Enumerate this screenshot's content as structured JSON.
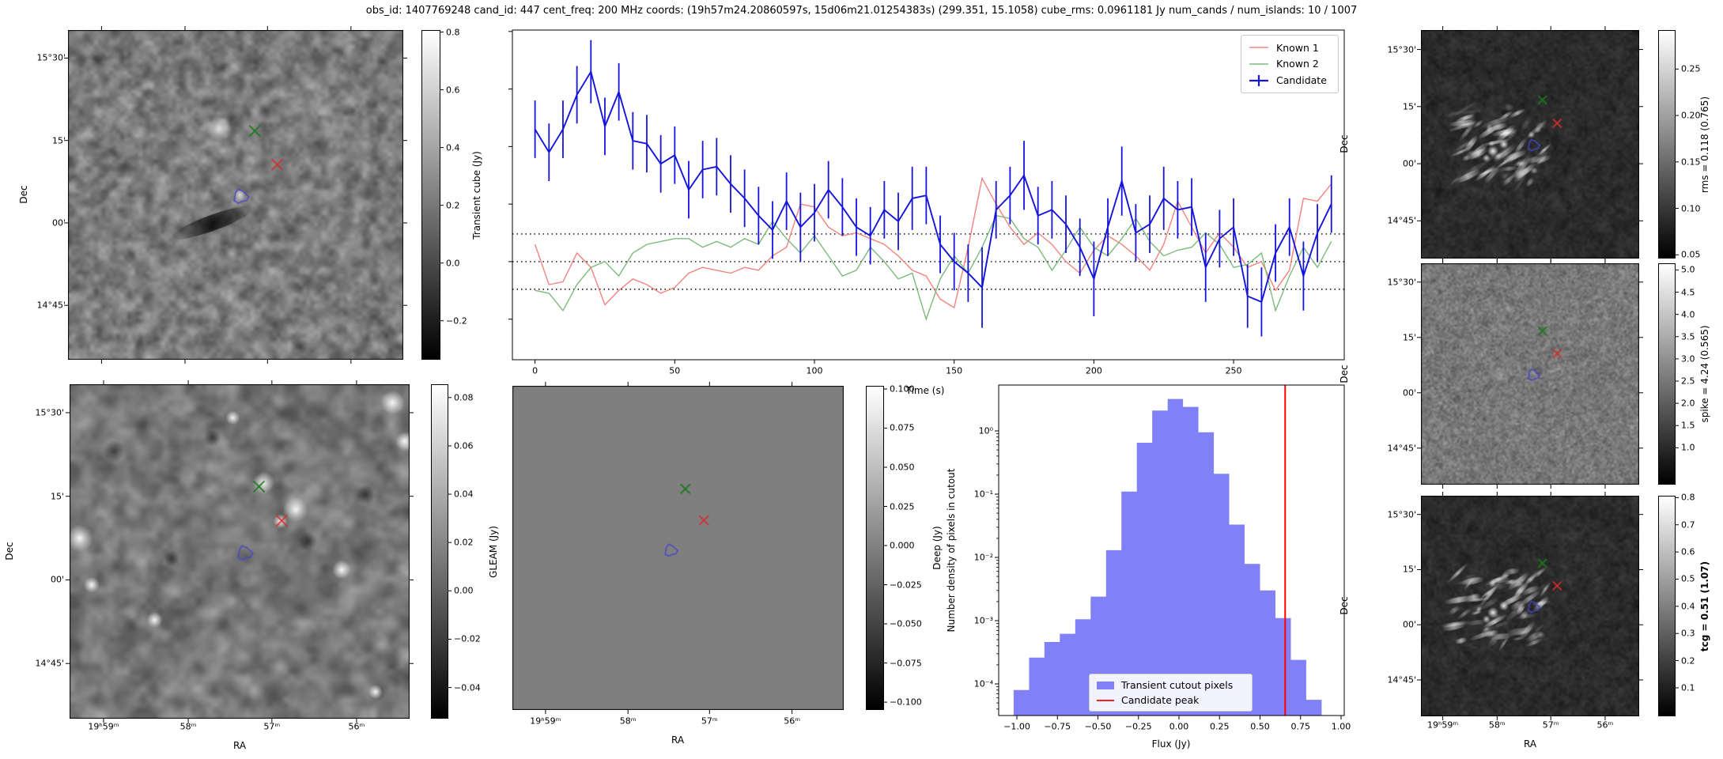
{
  "title": "obs_id: 1407769248 cand_id: 447 cent_freq: 200 MHz coords: (19h57m24.20860597s, 15d06m21.01254383s) (299.351, 15.1058) cube_rms: 0.0961181 Jy num_cands / num_islands: 10 / 1007",
  "colors": {
    "known1": "#f4837d",
    "known2": "#7cba7c",
    "candidate": "#1414dc",
    "hist_bar": "#8181f7",
    "hist_line": "#ff0000",
    "green_cross": "#1a7a1a",
    "red_cross": "#d62e2e",
    "blue_contour": "#4545cc",
    "deep_flat_gray": "#7f7f7f"
  },
  "sky_markers": {
    "green_cross": {
      "meaning": "Known 2 position",
      "fx": 0.557,
      "fy": 0.306
    },
    "red_cross": {
      "meaning": "Known 1 position",
      "fx": 0.624,
      "fy": 0.408
    },
    "blue_contour": {
      "meaning": "Candidate island contour",
      "fx": 0.515,
      "fy": 0.505
    }
  },
  "panels": {
    "transient_cube": {
      "dec_label": "Dec",
      "dec_ticks": [
        "15°30'",
        "15'",
        "00'",
        "14°45'"
      ],
      "colorbar": {
        "label": "Transient cube (Jy)",
        "ticks": [
          "0.8",
          "0.6",
          "0.4",
          "0.2",
          "0.0",
          "−0.2"
        ],
        "range": [
          -0.335,
          0.807
        ]
      }
    },
    "rms_map": {
      "dec_label": "Dec",
      "dec_ticks": [
        "15°30'",
        "15'",
        "00'",
        "14°45'"
      ],
      "colorbar": {
        "label": "rms = 0.118 (0.765)",
        "ticks": [
          "0.25",
          "0.20",
          "0.15",
          "0.10",
          "0.05"
        ],
        "range": [
          0.046,
          0.292
        ]
      }
    },
    "spike_map": {
      "dec_label": "Dec",
      "dec_ticks": [
        "15°30'",
        "15'",
        "00'",
        "14°45'"
      ],
      "colorbar": {
        "label": "spike = 4.24 (0.565)",
        "ticks": [
          "5.0",
          "4.5",
          "4.0",
          "3.5",
          "3.0",
          "2.5",
          "2.0",
          "1.5",
          "1.0"
        ],
        "range": [
          0.17,
          5.15
        ]
      }
    },
    "tcg_map": {
      "dec_label": "Dec",
      "ra_label": "RA",
      "dec_ticks": [
        "15°30'",
        "15'",
        "00'",
        "14°45'"
      ],
      "ra_ticks": [
        "19ʰ59ᵐ",
        "58ᵐ",
        "57ᵐ",
        "56ᵐ"
      ],
      "colorbar": {
        "label": "tcg = 0.51 (1.07)",
        "bold": true,
        "ticks": [
          "0.8",
          "0.7",
          "0.6",
          "0.5",
          "0.4",
          "0.3",
          "0.2",
          "0.1"
        ],
        "range": [
          -0.005,
          0.807
        ]
      }
    },
    "gleam": {
      "dec_label": "Dec",
      "ra_label": "RA",
      "dec_ticks": [
        "15°30'",
        "15'",
        "00'",
        "14°45'"
      ],
      "ra_ticks": [
        "19ʰ59ᵐ",
        "58ᵐ",
        "57ᵐ",
        "56ᵐ"
      ],
      "colorbar": {
        "label": "GLEAM (Jy)",
        "ticks": [
          "0.08",
          "0.06",
          "0.04",
          "0.02",
          "0.00",
          "−0.02",
          "−0.04"
        ],
        "range": [
          -0.0529,
          0.0855
        ]
      }
    },
    "deep": {
      "ra_label": "RA",
      "ra_ticks": [
        "19ʰ59ᵐ",
        "58ᵐ",
        "57ᵐ",
        "56ᵐ"
      ],
      "colorbar": {
        "label": "Deep (Jy)",
        "ticks": [
          "0.100",
          "0.075",
          "0.050",
          "0.025",
          "0.000",
          "−0.025",
          "−0.050",
          "−0.075",
          "−0.100"
        ],
        "range": [
          -0.105,
          0.102
        ]
      }
    }
  },
  "chart_data": [
    {
      "type": "line",
      "name": "lightcurve",
      "xlabel": "Time (s)",
      "xlim": [
        -8.1,
        289.6
      ],
      "ylim": [
        -0.341,
        0.805
      ],
      "xticks": [
        0,
        50,
        100,
        150,
        200,
        250
      ],
      "xtick_labels": [
        "0",
        "50",
        "100",
        "150",
        "200",
        "250"
      ],
      "yticks_unlabeled": [
        0.8,
        0.6,
        0.4,
        0.2,
        0.0,
        -0.2
      ],
      "dotted_hlines": [
        0.0961,
        0.0,
        -0.0961
      ],
      "legend_position": "upper right",
      "t_start": 0,
      "t_step": 5,
      "series": [
        {
          "name": "Known 1",
          "values": [
            0.06,
            -0.08,
            -0.07,
            0.03,
            -0.02,
            -0.15,
            -0.1,
            -0.06,
            -0.08,
            -0.11,
            -0.09,
            -0.04,
            -0.02,
            -0.03,
            -0.04,
            -0.02,
            -0.03,
            0.02,
            0.05,
            0.2,
            0.19,
            0.12,
            0.09,
            0.1,
            0.08,
            0.06,
            0.02,
            -0.03,
            -0.05,
            -0.13,
            -0.16,
            0.05,
            0.29,
            0.2,
            0.12,
            0.06,
            0.1,
            0.06,
            0.0,
            -0.04,
            0.04,
            0.09,
            0.06,
            0.02,
            -0.03,
            0.06,
            0.21,
            0.12,
            0.03,
            0.1,
            0.05,
            -0.02,
            0.0,
            -0.1,
            -0.03,
            0.22,
            0.21,
            0.27
          ]
        },
        {
          "name": "Known 2",
          "values": [
            -0.1,
            -0.11,
            -0.17,
            -0.08,
            -0.02,
            0.0,
            -0.05,
            0.03,
            0.06,
            0.07,
            0.08,
            0.08,
            0.05,
            0.07,
            0.05,
            0.08,
            0.06,
            0.14,
            0.08,
            0.03,
            0.09,
            0.02,
            -0.05,
            -0.03,
            0.05,
            0.0,
            -0.06,
            -0.04,
            -0.2,
            -0.06,
            0.02,
            -0.04,
            0.05,
            0.16,
            0.15,
            0.08,
            0.05,
            -0.03,
            0.04,
            0.12,
            0.05,
            0.02,
            0.08,
            0.15,
            0.07,
            0.02,
            0.04,
            0.05,
            0.1,
            0.06,
            -0.02,
            -0.01,
            0.03,
            -0.17,
            -0.05,
            0.05,
            -0.02,
            0.07
          ]
        },
        {
          "name": "Candidate",
          "values": [
            0.46,
            0.38,
            0.46,
            0.58,
            0.66,
            0.47,
            0.59,
            0.42,
            0.41,
            0.34,
            0.37,
            0.25,
            0.32,
            0.33,
            0.27,
            0.22,
            0.16,
            0.11,
            0.21,
            0.12,
            0.17,
            0.25,
            0.19,
            0.12,
            0.09,
            0.18,
            0.14,
            0.22,
            0.23,
            0.06,
            0.0,
            -0.04,
            -0.09,
            0.18,
            0.23,
            0.3,
            0.16,
            0.18,
            0.13,
            0.05,
            -0.06,
            0.12,
            0.28,
            0.1,
            0.13,
            0.22,
            0.18,
            0.19,
            -0.02,
            0.08,
            0.12,
            -0.12,
            -0.14,
            0.03,
            0.12,
            -0.05,
            0.1,
            0.2
          ],
          "errors": [
            0.1,
            0.1,
            0.1,
            0.1,
            0.11,
            0.1,
            0.1,
            0.1,
            0.1,
            0.1,
            0.1,
            0.1,
            0.1,
            0.1,
            0.1,
            0.1,
            0.1,
            0.1,
            0.1,
            0.12,
            0.1,
            0.1,
            0.1,
            0.1,
            0.1,
            0.1,
            0.1,
            0.11,
            0.1,
            0.1,
            0.1,
            0.1,
            0.14,
            0.1,
            0.1,
            0.12,
            0.1,
            0.1,
            0.1,
            0.1,
            0.13,
            0.1,
            0.12,
            0.1,
            0.1,
            0.11,
            0.1,
            0.1,
            0.12,
            0.1,
            0.1,
            0.11,
            0.12,
            0.1,
            0.1,
            0.12,
            0.1,
            0.1
          ]
        }
      ]
    },
    {
      "type": "bar",
      "name": "flux_histogram",
      "xlabel": "Flux (Jy)",
      "ylabel": "Number density of pixels in cutout",
      "yscale": "log",
      "bin_start": -1.02,
      "bin_width": 0.095,
      "values": [
        8e-05,
        0.00026,
        0.00046,
        0.00062,
        0.00105,
        0.0024,
        0.013,
        0.11,
        0.65,
        2.1,
        3.2,
        2.4,
        0.95,
        0.21,
        0.033,
        0.0079,
        0.003,
        0.0011,
        0.00024,
        5.6e-05
      ],
      "candidate_peak": 0.655,
      "xticks": [
        -1.0,
        -0.75,
        -0.5,
        -0.25,
        0.0,
        0.25,
        0.5,
        0.75,
        1.0
      ],
      "xtick_labels": [
        "−1.00",
        "−0.75",
        "−0.50",
        "−0.25",
        "0.00",
        "0.25",
        "0.50",
        "0.75",
        "1.00"
      ],
      "ytick_labels": [
        "10⁰",
        "10⁻¹",
        "10⁻²",
        "10⁻³",
        "10⁻⁴"
      ],
      "log_ylim": [
        -4.5,
        0.725
      ],
      "legend": [
        "Transient cutout pixels",
        "Candidate peak"
      ]
    }
  ]
}
